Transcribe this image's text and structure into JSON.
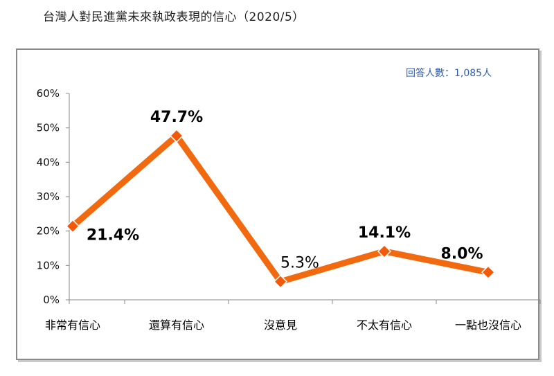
{
  "title": "台灣人對民進黨未來執政表現的信心（2020/5）",
  "respondents_note": "回答人數：1,085人",
  "colors": {
    "line": "#f26a10",
    "marker": "#f25a0a",
    "marker_edge": "#ffffff",
    "axis": "#888888"
  },
  "chart_data": {
    "type": "line",
    "title": "台灣人對民進黨未來執政表現的信心（2020/5）",
    "categories": [
      "非常有信心",
      "還算有信心",
      "沒意見",
      "不太有信心",
      "一點也沒信心"
    ],
    "values": [
      21.4,
      47.7,
      5.3,
      14.1,
      8.0
    ],
    "data_labels": [
      "21.4%",
      "47.7%",
      "5.3%",
      "14.1%",
      "8.0%"
    ],
    "yticks": [
      "0%",
      "10%",
      "20%",
      "30%",
      "40%",
      "50%",
      "60%"
    ],
    "ylim": [
      0,
      60
    ],
    "grid": false,
    "legend": "none",
    "xlabel": "",
    "ylabel": ""
  }
}
